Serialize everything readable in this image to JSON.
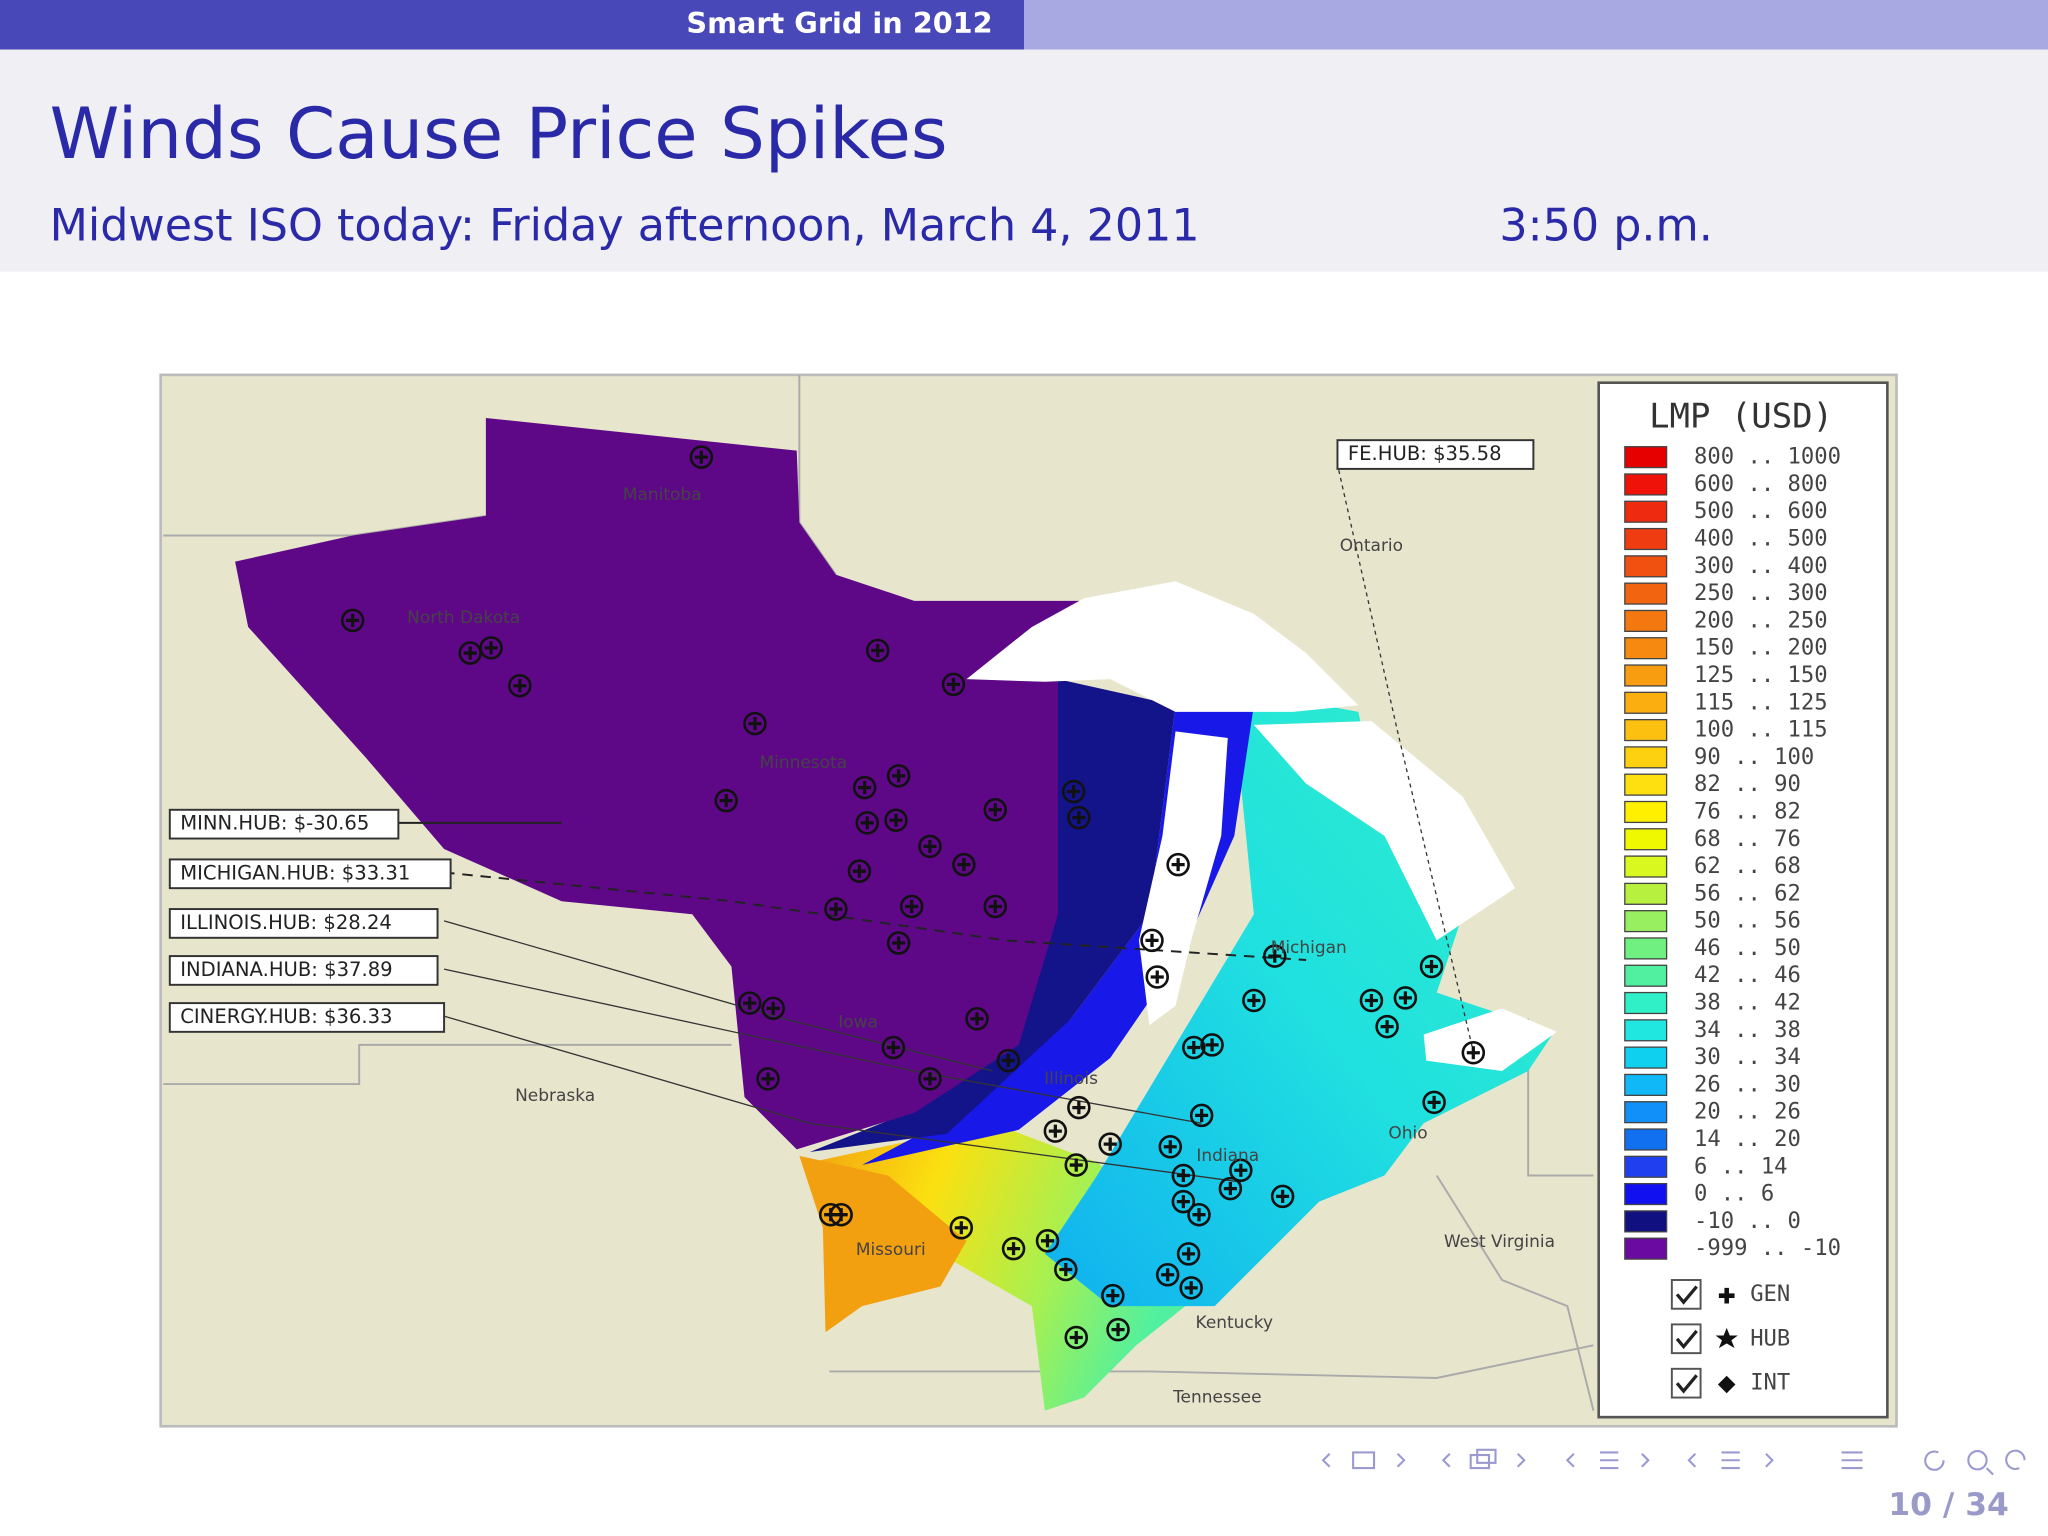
{
  "header": {
    "section": "Smart Grid in 2012"
  },
  "slide": {
    "title": "Winds Cause Price Spikes",
    "subtitle": "Midwest ISO today: Friday afternoon, March 4, 2011",
    "time": "3:50 p.m."
  },
  "map": {
    "hubs": [
      "MINN.HUB: $-30.65",
      "MICHIGAN.HUB: $33.31",
      "ILLINOIS.HUB: $28.24",
      "INDIANA.HUB: $37.89",
      "CINERGY.HUB: $36.33",
      "FE.HUB: $35.58"
    ],
    "regions": [
      "Manitoba",
      "North Dakota",
      "Minnesota",
      "Iowa",
      "Nebraska",
      "Missouri",
      "Illinois",
      "Indiana",
      "Ohio",
      "Michigan",
      "Ontario",
      "West Virginia",
      "Kentucky",
      "Tennessee"
    ],
    "legend": {
      "title": "LMP (USD)",
      "items": [
        {
          "label": "800 .. 1000",
          "color": "#e60000"
        },
        {
          "label": "600 .. 800",
          "color": "#ee1208"
        },
        {
          "label": "500 .. 600",
          "color": "#ee2a10"
        },
        {
          "label": "400 .. 500",
          "color": "#ef3c10"
        },
        {
          "label": "300 .. 400",
          "color": "#f05010"
        },
        {
          "label": "250 .. 300",
          "color": "#f26410"
        },
        {
          "label": "200 .. 250",
          "color": "#f47810"
        },
        {
          "label": "150 .. 200",
          "color": "#f68a10"
        },
        {
          "label": "125 .. 150",
          "color": "#f89c10"
        },
        {
          "label": "115 .. 125",
          "color": "#faae10"
        },
        {
          "label": "100 .. 115",
          "color": "#fcc010"
        },
        {
          "label": "90 .. 100",
          "color": "#fdd010"
        },
        {
          "label": "82 .. 90",
          "color": "#fee010"
        },
        {
          "label": "76 .. 82",
          "color": "#fff000"
        },
        {
          "label": "68 .. 76",
          "color": "#f0f800"
        },
        {
          "label": "62 .. 68",
          "color": "#d8f820"
        },
        {
          "label": "56 .. 62",
          "color": "#b8f040"
        },
        {
          "label": "50 .. 56",
          "color": "#98f060"
        },
        {
          "label": "46 .. 50",
          "color": "#70f080"
        },
        {
          "label": "42 .. 46",
          "color": "#50f0a0"
        },
        {
          "label": "38 .. 42",
          "color": "#30f0c8"
        },
        {
          "label": "34 .. 38",
          "color": "#20e8e0"
        },
        {
          "label": "30 .. 34",
          "color": "#10d0f0"
        },
        {
          "label": "26 .. 30",
          "color": "#10b8f8"
        },
        {
          "label": "20 .. 26",
          "color": "#1090f8"
        },
        {
          "label": "14 .. 20",
          "color": "#1070f0"
        },
        {
          "label": "6 .. 14",
          "color": "#2040f0"
        },
        {
          "label": "0 .. 6",
          "color": "#1010f0"
        },
        {
          "label": "-10 .. 0",
          "color": "#101080"
        },
        {
          "label": "-999 .. -10",
          "color": "#6a0aa0"
        }
      ],
      "toggles": [
        "GEN",
        "HUB",
        "INT"
      ]
    }
  },
  "footer": {
    "page": "10 / 34"
  }
}
